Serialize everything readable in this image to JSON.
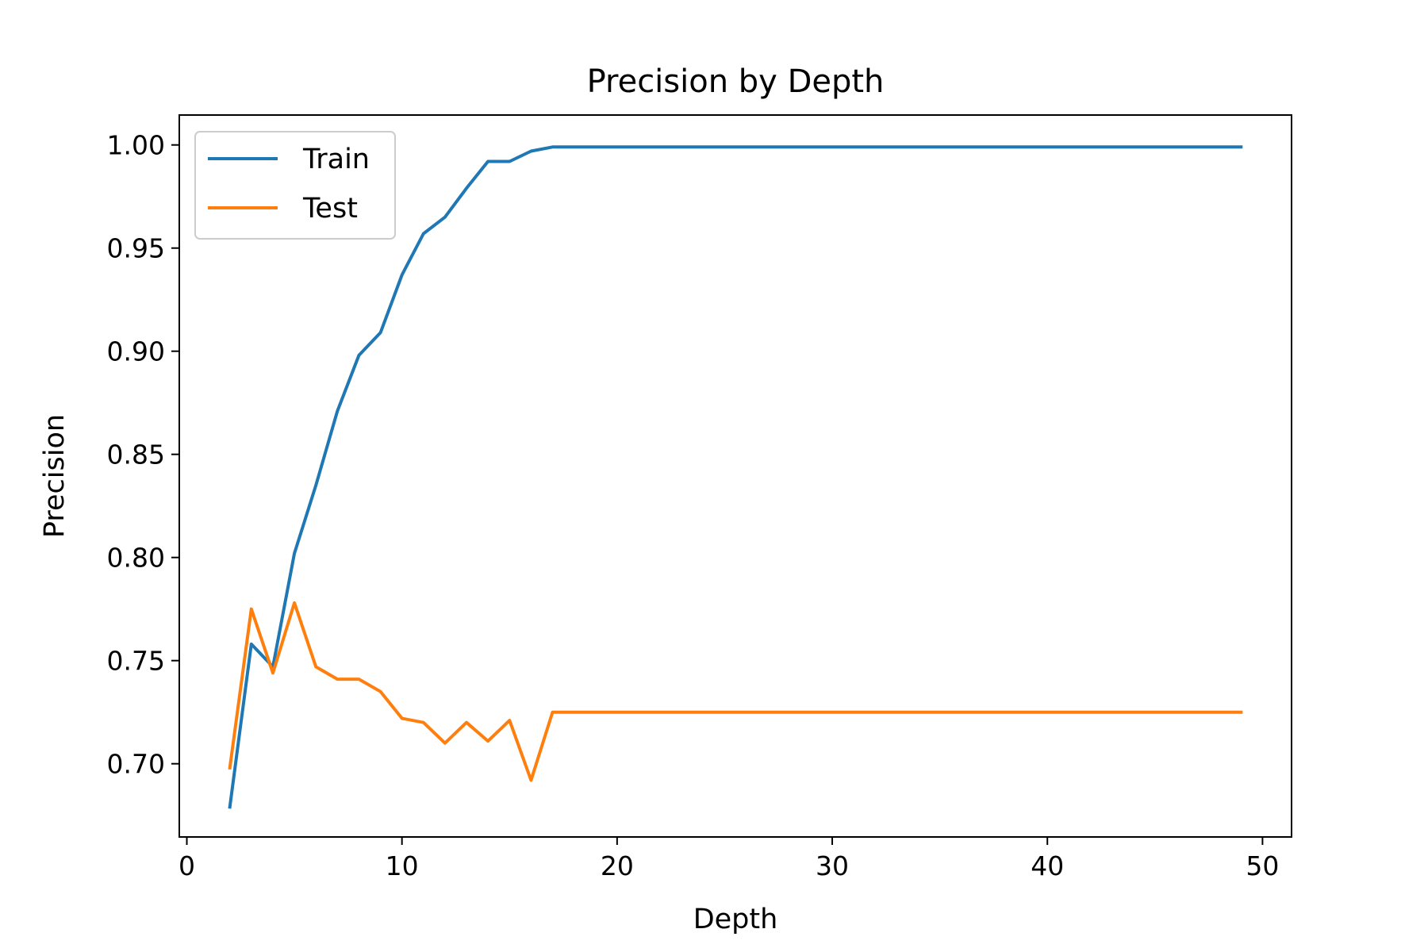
{
  "chart_data": {
    "type": "line",
    "title": "Precision by Depth",
    "xlabel": "Depth",
    "ylabel": "Precision",
    "xlim": [
      -0.35,
      51.35
    ],
    "ylim": [
      0.6645,
      1.0145
    ],
    "xticks": [
      0,
      10,
      20,
      30,
      40,
      50
    ],
    "xtick_labels": [
      "0",
      "10",
      "20",
      "30",
      "40",
      "50"
    ],
    "yticks": [
      0.7,
      0.75,
      0.8,
      0.85,
      0.9,
      0.95,
      1.0
    ],
    "ytick_labels": [
      "0.70",
      "0.75",
      "0.80",
      "0.85",
      "0.90",
      "0.95",
      "1.00"
    ],
    "grid": false,
    "legend_position": "upper-left",
    "x": [
      2,
      3,
      4,
      5,
      6,
      7,
      8,
      9,
      10,
      11,
      12,
      13,
      14,
      15,
      16,
      17,
      18,
      19,
      20,
      21,
      22,
      23,
      24,
      25,
      26,
      27,
      28,
      29,
      30,
      31,
      32,
      33,
      34,
      35,
      36,
      37,
      38,
      39,
      40,
      41,
      42,
      43,
      44,
      45,
      46,
      47,
      48,
      49
    ],
    "series": [
      {
        "name": "Train",
        "color": "#1f77b4",
        "values": [
          0.679,
          0.758,
          0.747,
          0.802,
          0.835,
          0.871,
          0.898,
          0.909,
          0.937,
          0.957,
          0.965,
          0.979,
          0.992,
          0.992,
          0.997,
          0.999,
          0.999,
          0.999,
          0.999,
          0.999,
          0.999,
          0.999,
          0.999,
          0.999,
          0.999,
          0.999,
          0.999,
          0.999,
          0.999,
          0.999,
          0.999,
          0.999,
          0.999,
          0.999,
          0.999,
          0.999,
          0.999,
          0.999,
          0.999,
          0.999,
          0.999,
          0.999,
          0.999,
          0.999,
          0.999,
          0.999,
          0.999,
          0.999
        ]
      },
      {
        "name": "Test",
        "color": "#ff7f0e",
        "values": [
          0.698,
          0.775,
          0.744,
          0.778,
          0.747,
          0.741,
          0.741,
          0.735,
          0.722,
          0.72,
          0.71,
          0.72,
          0.711,
          0.721,
          0.692,
          0.725,
          0.725,
          0.725,
          0.725,
          0.725,
          0.725,
          0.725,
          0.725,
          0.725,
          0.725,
          0.725,
          0.725,
          0.725,
          0.725,
          0.725,
          0.725,
          0.725,
          0.725,
          0.725,
          0.725,
          0.725,
          0.725,
          0.725,
          0.725,
          0.725,
          0.725,
          0.725,
          0.725,
          0.725,
          0.725,
          0.725,
          0.725,
          0.725
        ]
      }
    ]
  }
}
